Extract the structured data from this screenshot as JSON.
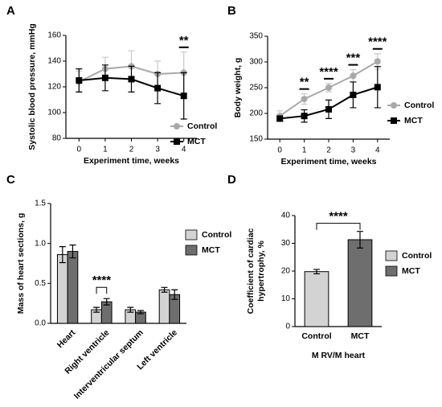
{
  "chart_data": [
    {
      "type": "line",
      "panel": "A",
      "x_label": "Experiment time, weeks",
      "y_label": "Systolic blood pressure, mmHg",
      "x": [
        0,
        1,
        2,
        3,
        4
      ],
      "xlim": [
        -0.5,
        4.5
      ],
      "xticks": [
        0,
        1,
        2,
        3,
        4
      ],
      "ylim": [
        80,
        160
      ],
      "yticks": [
        80,
        100,
        120,
        140,
        160
      ],
      "series": [
        {
          "name": "Control",
          "color": "#a9a9a9",
          "marker": "circle",
          "values": [
            124,
            134,
            136,
            130,
            131
          ],
          "errors": [
            8,
            9,
            12,
            10,
            16
          ]
        },
        {
          "name": "MCT",
          "color": "#000000",
          "marker": "square",
          "values": [
            125,
            127,
            126,
            119,
            113
          ],
          "errors": [
            9,
            10,
            10,
            12,
            18
          ]
        }
      ],
      "annotations": [
        {
          "text": "**",
          "x": 4
        }
      ]
    },
    {
      "type": "line",
      "panel": "B",
      "x_label": "Experiment time, weeks",
      "y_label": "Body weight, g",
      "x": [
        0,
        1,
        2,
        3,
        4
      ],
      "xlim": [
        -0.5,
        4.5
      ],
      "xticks": [
        0,
        1,
        2,
        3,
        4
      ],
      "ylim": [
        150,
        350
      ],
      "yticks": [
        150,
        200,
        250,
        300,
        350
      ],
      "series": [
        {
          "name": "Control",
          "color": "#a9a9a9",
          "marker": "circle",
          "values": [
            195,
            228,
            250,
            273,
            301
          ],
          "errors": [
            10,
            10,
            8,
            12,
            15
          ]
        },
        {
          "name": "MCT",
          "color": "#000000",
          "marker": "square",
          "values": [
            190,
            195,
            208,
            236,
            251
          ],
          "errors": [
            5,
            12,
            18,
            25,
            40
          ]
        }
      ],
      "annotations": [
        {
          "text": "**",
          "x": 1
        },
        {
          "text": "****",
          "x": 2
        },
        {
          "text": "***",
          "x": 3
        },
        {
          "text": "****",
          "x": 4
        }
      ]
    },
    {
      "type": "bar",
      "panel": "C",
      "y_label": "Mass of heart sections, g",
      "categories": [
        "Heart",
        "Right ventricle",
        "Interventricular septum",
        "Left ventricle"
      ],
      "ylim": [
        0,
        1.5
      ],
      "yticks": [
        {
          "value": 0,
          "label": "0.0"
        },
        0.5,
        {
          "value": 1,
          "label": "1.0"
        },
        1.5
      ],
      "series": [
        {
          "name": "Control",
          "color": "#d3d3d3",
          "values": [
            0.86,
            0.17,
            0.17,
            0.42
          ],
          "errors": [
            0.1,
            0.03,
            0.03,
            0.03
          ]
        },
        {
          "name": "MCT",
          "color": "#6e6e6e",
          "values": [
            0.9,
            0.27,
            0.14,
            0.36
          ],
          "errors": [
            0.08,
            0.04,
            0.02,
            0.06
          ]
        }
      ],
      "annotations": [
        {
          "text": "****",
          "category": 1
        }
      ]
    },
    {
      "type": "bar",
      "panel": "D",
      "x_label": "M RV/M heart",
      "y_label": "Coefficient of cardiac hypertrophy, %",
      "categories": [
        "Control",
        "MCT"
      ],
      "ylim": [
        0,
        40
      ],
      "yticks": [
        0,
        10,
        20,
        30,
        40
      ],
      "series": [
        {
          "name": "Control",
          "color": "#d3d3d3",
          "values": [
            19.8,
            null
          ],
          "errors": [
            0.8,
            null
          ]
        },
        {
          "name": "MCT",
          "color": "#6e6e6e",
          "values": [
            null,
            31.3
          ],
          "errors": [
            null,
            3
          ]
        }
      ],
      "annotations": [
        {
          "text": "****",
          "span": true
        }
      ]
    }
  ]
}
